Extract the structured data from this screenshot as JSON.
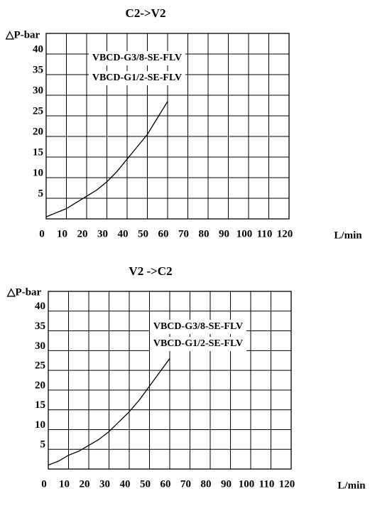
{
  "chart_data": [
    {
      "type": "line",
      "title": "C2->V2",
      "ylabel": "△P-bar",
      "xlabel": "L/min",
      "x": [
        0,
        5,
        10,
        15,
        20,
        25,
        30,
        35,
        40,
        45,
        50,
        55,
        60
      ],
      "values": [
        0.5,
        1.5,
        2.5,
        4,
        5.5,
        7,
        9,
        11.5,
        14.5,
        17.5,
        20.5,
        24.5,
        28.5
      ],
      "color": "#000000",
      "xlim": [
        0,
        120
      ],
      "xticks": [
        0,
        10,
        20,
        30,
        40,
        50,
        60,
        70,
        80,
        90,
        100,
        110,
        120
      ],
      "ylim": [
        0,
        45
      ],
      "yticks": [
        5,
        10,
        15,
        20,
        25,
        30,
        35,
        40
      ],
      "grid": true,
      "annotations": [
        "VBCD-G3/8-SE-FLV",
        "VBCD-G1/2-SE-FLV"
      ]
    },
    {
      "type": "line",
      "title": "V2 ->C2",
      "ylabel": "△P-bar",
      "xlabel": "L/min",
      "x": [
        0,
        5,
        10,
        15,
        20,
        25,
        30,
        35,
        40,
        45,
        50,
        55,
        60
      ],
      "values": [
        1,
        2,
        3.5,
        4.5,
        6,
        7.5,
        9.5,
        12,
        14.5,
        17.5,
        21,
        24.5,
        28
      ],
      "color": "#000000",
      "xlim": [
        0,
        120
      ],
      "xticks": [
        0,
        10,
        20,
        30,
        40,
        50,
        60,
        70,
        80,
        90,
        100,
        110,
        120
      ],
      "ylim": [
        0,
        45
      ],
      "yticks": [
        5,
        10,
        15,
        20,
        25,
        30,
        35,
        40
      ],
      "grid": true,
      "annotations": [
        "VBCD-G3/8-SE-FLV",
        "VBCD-G1/2-SE-FLV"
      ]
    }
  ]
}
